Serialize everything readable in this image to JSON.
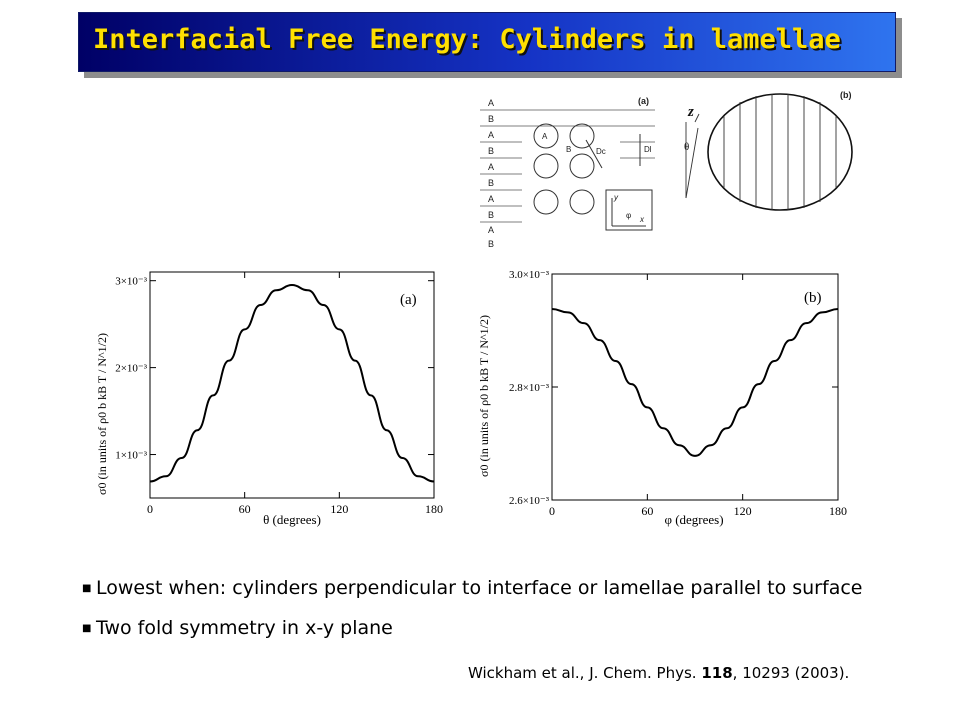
{
  "slide": {
    "title": "Interfacial Free Energy: Cylinders in lamellae",
    "bullets": [
      "Lowest when: cylinders perpendicular to interface or lamellae parallel to surface",
      "Two fold symmetry in x-y plane"
    ],
    "citation": {
      "authors": "Wickham et al., J. Chem. Phys.",
      "volume": "118",
      "rest": ", 10293 (2003)."
    }
  },
  "schematic": {
    "panel_a_label": "(a)",
    "panel_b_label": "(b)",
    "layers": [
      "A",
      "B",
      "A",
      "B",
      "A",
      "B",
      "A",
      "B",
      "A",
      "B"
    ],
    "labels": {
      "cyl_a": "A",
      "cyl_b": "B",
      "dc": "Dc",
      "dl": "Dl",
      "y": "y",
      "x": "x",
      "phi": "φ",
      "z": "z",
      "theta": "θ"
    }
  },
  "chart_data": [
    {
      "type": "line",
      "panel_label": "(a)",
      "xlabel": "θ (degrees)",
      "ylabel": "σ0 (in units of ρ0 b kB T / N^1/2)",
      "xlim": [
        0,
        180
      ],
      "ylim": [
        0.0005,
        0.0031
      ],
      "xticks": [
        0,
        60,
        120,
        180
      ],
      "yticks": [
        0.001,
        0.002,
        0.003
      ],
      "ytick_labels": [
        "1×10⁻³",
        "2×10⁻³",
        "3×10⁻³"
      ],
      "x": [
        0,
        10,
        20,
        30,
        40,
        50,
        60,
        70,
        80,
        90,
        100,
        110,
        120,
        130,
        140,
        150,
        160,
        170,
        180
      ],
      "y": [
        0.00069,
        0.00075,
        0.00096,
        0.00128,
        0.00168,
        0.00208,
        0.00244,
        0.00272,
        0.00289,
        0.00295,
        0.00289,
        0.00272,
        0.00244,
        0.00208,
        0.00168,
        0.00128,
        0.00096,
        0.00075,
        0.00069
      ]
    },
    {
      "type": "line",
      "panel_label": "(b)",
      "xlabel": "φ (degrees)",
      "ylabel": "σ0 (in units of ρ0 b kB T / N^1/2)",
      "xlim": [
        0,
        180
      ],
      "ylim": [
        0.0026,
        0.003
      ],
      "xticks": [
        0,
        60,
        120,
        180
      ],
      "yticks": [
        0.0026,
        0.0028,
        0.003
      ],
      "ytick_labels": [
        "2.6×10⁻³",
        "2.8×10⁻³",
        "3.0×10⁻³"
      ],
      "x": [
        0,
        10,
        20,
        30,
        40,
        50,
        60,
        70,
        80,
        90,
        100,
        110,
        120,
        130,
        140,
        150,
        160,
        170,
        180
      ],
      "y": [
        0.002938,
        0.002932,
        0.002913,
        0.002883,
        0.002846,
        0.002805,
        0.002764,
        0.002727,
        0.002697,
        0.002678,
        0.002697,
        0.002727,
        0.002764,
        0.002805,
        0.002846,
        0.002883,
        0.002913,
        0.002932,
        0.002938
      ]
    }
  ]
}
